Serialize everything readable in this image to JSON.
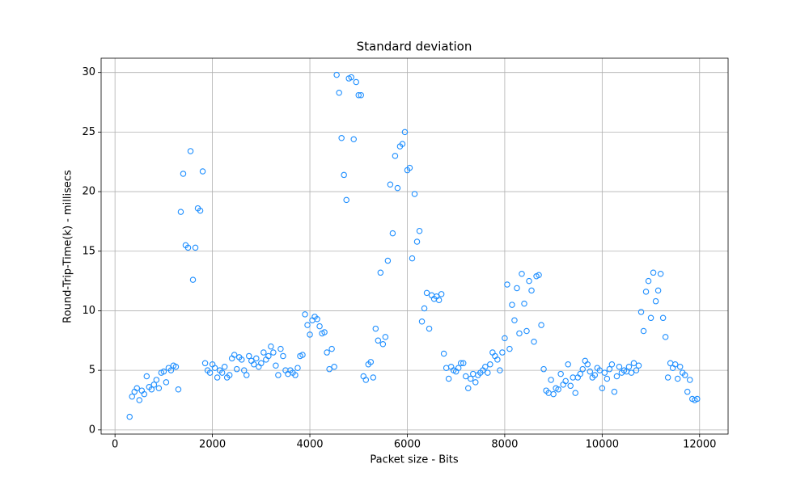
{
  "chart_data": {
    "type": "scatter",
    "title": "Standard deviation",
    "x_label": "Packet size - Bits",
    "y_label": "Round-Trip-Time(k) - millisecs",
    "color": "#1f8fff",
    "grid": true,
    "xlim": [
      -285,
      12585
    ],
    "ylim": [
      -0.35,
      31.2
    ],
    "xticks": [
      0,
      2000,
      4000,
      6000,
      8000,
      10000,
      12000
    ],
    "yticks": [
      0,
      5,
      10,
      15,
      20,
      25,
      30
    ],
    "x": [
      300,
      350,
      400,
      450,
      500,
      550,
      600,
      650,
      700,
      750,
      800,
      850,
      900,
      950,
      1000,
      1050,
      1100,
      1150,
      1200,
      1250,
      1300,
      1350,
      1400,
      1450,
      1500,
      1550,
      1600,
      1650,
      1700,
      1750,
      1800,
      1850,
      1900,
      1950,
      2000,
      2050,
      2100,
      2150,
      2200,
      2250,
      2300,
      2350,
      2400,
      2450,
      2500,
      2550,
      2600,
      2650,
      2700,
      2750,
      2800,
      2850,
      2900,
      2950,
      3000,
      3050,
      3100,
      3150,
      3200,
      3250,
      3300,
      3350,
      3400,
      3450,
      3500,
      3550,
      3600,
      3650,
      3700,
      3750,
      3800,
      3850,
      3900,
      3950,
      4000,
      4050,
      4100,
      4150,
      4200,
      4250,
      4300,
      4350,
      4400,
      4450,
      4500,
      4550,
      4600,
      4650,
      4700,
      4750,
      4800,
      4850,
      4900,
      4950,
      5000,
      5050,
      5100,
      5150,
      5200,
      5250,
      5300,
      5350,
      5400,
      5450,
      5500,
      5550,
      5600,
      5650,
      5700,
      5750,
      5800,
      5850,
      5900,
      5950,
      6000,
      6050,
      6100,
      6150,
      6200,
      6250,
      6300,
      6350,
      6400,
      6450,
      6500,
      6550,
      6600,
      6650,
      6700,
      6750,
      6800,
      6850,
      6900,
      6950,
      7000,
      7050,
      7100,
      7150,
      7200,
      7250,
      7300,
      7350,
      7400,
      7450,
      7500,
      7550,
      7600,
      7650,
      7700,
      7750,
      7800,
      7850,
      7900,
      7950,
      8000,
      8050,
      8100,
      8150,
      8200,
      8250,
      8300,
      8350,
      8400,
      8450,
      8500,
      8550,
      8600,
      8650,
      8700,
      8750,
      8800,
      8850,
      8900,
      8950,
      9000,
      9050,
      9100,
      9150,
      9200,
      9250,
      9300,
      9350,
      9400,
      9450,
      9500,
      9550,
      9600,
      9650,
      9700,
      9750,
      9800,
      9850,
      9900,
      9950,
      10000,
      10050,
      10100,
      10150,
      10200,
      10250,
      10300,
      10350,
      10400,
      10450,
      10500,
      10550,
      10600,
      10650,
      10700,
      10750,
      10800,
      10850,
      10900,
      10950,
      11000,
      11050,
      11100,
      11150,
      11200,
      11250,
      11300,
      11350,
      11400,
      11450,
      11500,
      11550,
      11600,
      11650,
      11700,
      11750,
      11800,
      11850,
      11900,
      11950
    ],
    "values": [
      1.1,
      2.8,
      3.2,
      3.5,
      2.5,
      3.3,
      3.0,
      4.5,
      3.6,
      3.4,
      3.8,
      4.2,
      3.5,
      4.8,
      4.9,
      4.0,
      5.2,
      5.0,
      5.4,
      5.3,
      3.4,
      18.3,
      21.5,
      15.5,
      15.3,
      23.4,
      12.6,
      15.3,
      18.6,
      18.4,
      21.7,
      5.6,
      5.0,
      4.8,
      5.5,
      5.2,
      4.4,
      5.0,
      4.8,
      5.3,
      4.4,
      4.6,
      6.0,
      6.3,
      5.1,
      6.1,
      5.9,
      5.0,
      4.6,
      6.2,
      5.8,
      5.5,
      6.0,
      5.3,
      5.6,
      6.5,
      5.9,
      6.2,
      7.0,
      6.5,
      5.4,
      4.6,
      6.8,
      6.2,
      5.0,
      4.7,
      5.0,
      4.8,
      4.6,
      5.2,
      6.2,
      6.3,
      9.7,
      8.8,
      8.0,
      9.2,
      9.5,
      9.3,
      8.7,
      8.1,
      8.2,
      6.5,
      5.1,
      6.8,
      5.3,
      29.8,
      28.3,
      24.5,
      21.4,
      19.3,
      29.5,
      29.6,
      24.4,
      29.2,
      28.1,
      28.1,
      4.5,
      4.2,
      5.5,
      5.7,
      4.4,
      8.5,
      7.5,
      13.2,
      7.2,
      7.8,
      14.2,
      20.6,
      16.5,
      23.0,
      20.3,
      23.8,
      24.0,
      25.0,
      21.8,
      22.0,
      14.4,
      19.8,
      15.8,
      16.7,
      9.1,
      10.2,
      11.5,
      8.5,
      11.3,
      11.0,
      11.2,
      10.9,
      11.4,
      6.4,
      5.2,
      4.3,
      5.3,
      5.0,
      4.9,
      5.2,
      5.6,
      5.6,
      4.5,
      3.5,
      4.3,
      4.7,
      4.0,
      4.6,
      4.8,
      5.0,
      5.3,
      4.8,
      5.5,
      6.5,
      6.2,
      5.9,
      5.0,
      6.5,
      7.7,
      12.2,
      6.8,
      10.5,
      9.2,
      11.9,
      8.1,
      13.1,
      10.6,
      8.3,
      12.5,
      11.7,
      7.4,
      12.9,
      13.0,
      8.8,
      5.1,
      3.3,
      3.1,
      4.2,
      3.0,
      3.5,
      3.4,
      4.7,
      3.8,
      4.1,
      5.5,
      3.7,
      4.4,
      3.1,
      4.4,
      4.7,
      5.1,
      5.8,
      5.5,
      4.9,
      4.4,
      4.6,
      5.2,
      5.0,
      3.5,
      4.8,
      4.3,
      5.1,
      5.5,
      3.2,
      4.5,
      5.3,
      4.8,
      5.0,
      4.9,
      5.3,
      4.8,
      5.6,
      5.0,
      5.4,
      9.9,
      8.3,
      11.6,
      12.5,
      9.4,
      13.2,
      10.8,
      11.7,
      13.1,
      9.4,
      7.8,
      4.4,
      5.6,
      5.2,
      5.5,
      4.3,
      5.3,
      4.8,
      4.6,
      3.2,
      4.2,
      2.6,
      2.5,
      2.6
    ]
  }
}
